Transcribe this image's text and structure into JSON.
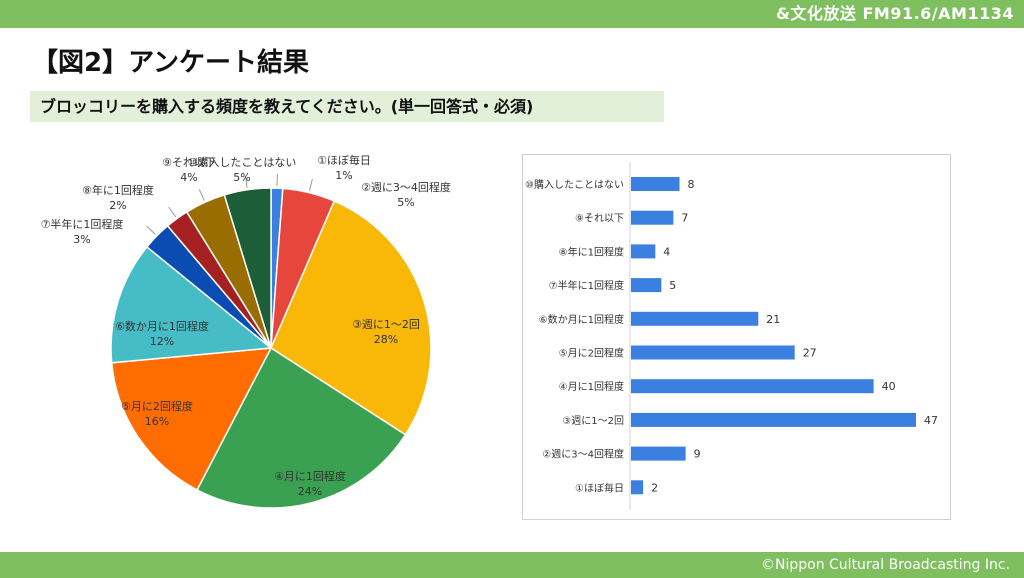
{
  "header": {
    "brand": "&文化放送 FM91.6/AM1134"
  },
  "page_title": "【図2】アンケート結果",
  "question": "ブロッコリーを購入する頻度を教えてください。(単一回答式・必須)",
  "footer": {
    "copyright": "©Nippon Cultural Broadcasting Inc."
  },
  "colors": {
    "band": "#7fbf5f",
    "question_bg": "#e2efd9",
    "bar": "#3b7fe0",
    "pie": [
      "#3b7fe0",
      "#e6463b",
      "#f9b707",
      "#3aa153",
      "#ff6d01",
      "#46bdc6",
      "#0b4cb3",
      "#a52121",
      "#9a6d00",
      "#1b5e37"
    ]
  },
  "chart_data": [
    {
      "type": "pie",
      "categories": [
        "①ほぼ毎日",
        "②週に3〜4回程度",
        "③週に1〜2回",
        "④月に1回程度",
        "⑤月に2回程度",
        "⑥数か月に1回程度",
        "⑦半年に1回程度",
        "⑧年に1回程度",
        "⑨それ以下",
        "⑩購入したことはない"
      ],
      "values": [
        2,
        9,
        47,
        40,
        27,
        21,
        5,
        4,
        7,
        8
      ],
      "labels": [
        "1%",
        "5%",
        "28%",
        "24%",
        "16%",
        "12%",
        "3%",
        "2%",
        "4%",
        "5%"
      ],
      "start": "12 o'clock, clockwise"
    },
    {
      "type": "bar",
      "orientation": "horizontal",
      "categories": [
        "⑩購入したことはない",
        "⑨それ以下",
        "⑧年に1回程度",
        "⑦半年に1回程度",
        "⑥数か月に1回程度",
        "⑤月に2回程度",
        "④月に1回程度",
        "③週に1〜2回",
        "②週に3〜4回程度",
        "①ほぼ毎日"
      ],
      "values": [
        8,
        7,
        4,
        5,
        21,
        27,
        40,
        47,
        9,
        2
      ],
      "grid": false
    }
  ]
}
